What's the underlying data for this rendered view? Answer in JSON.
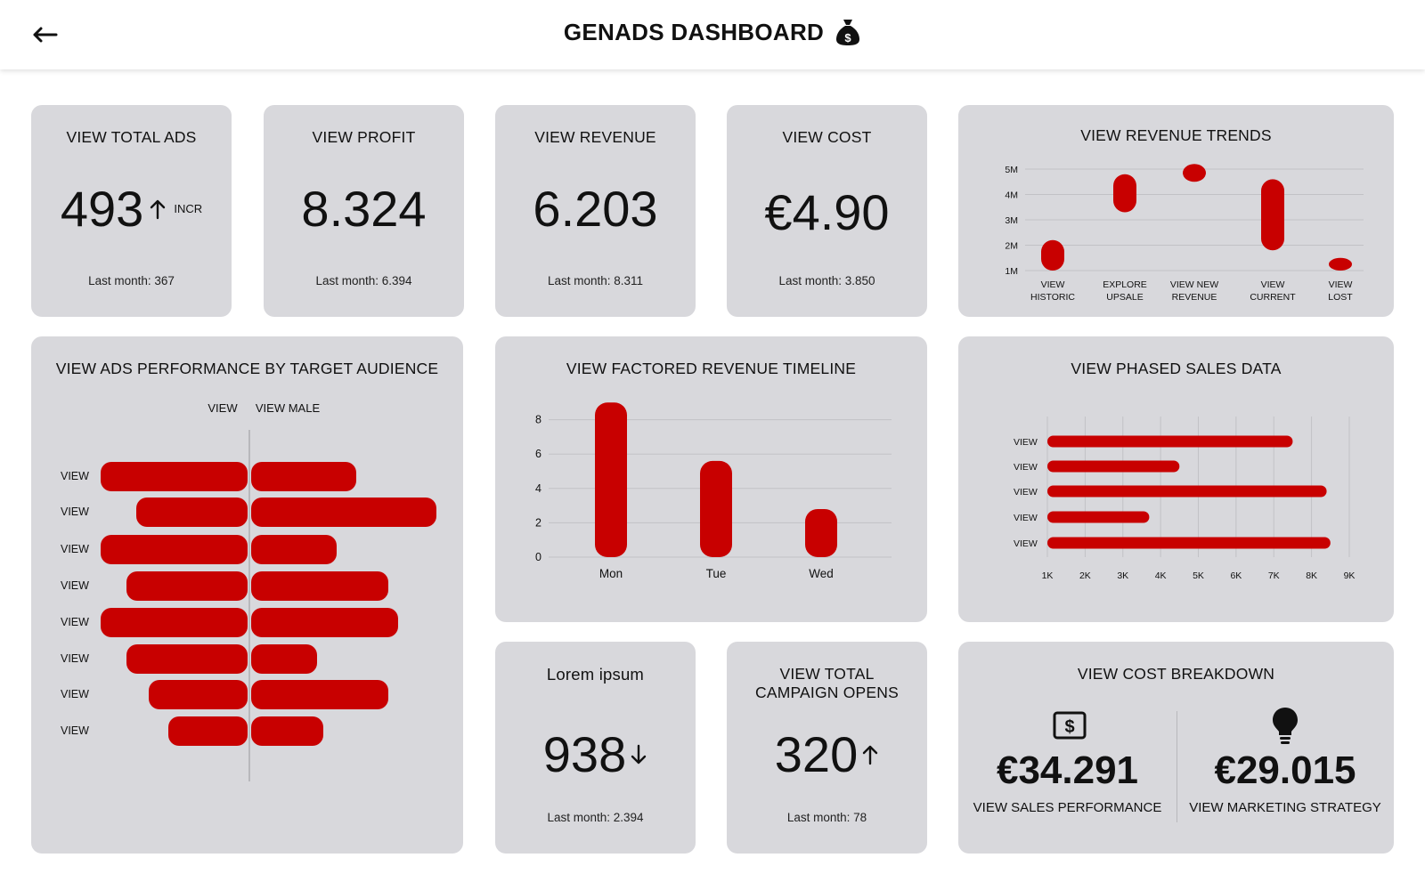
{
  "header": {
    "title": "GENADS DASHBOARD",
    "back_icon": "arrow-left-icon",
    "title_icon": "money-bag-icon"
  },
  "kpis": {
    "total_ads": {
      "title": "VIEW TOTAL ADS",
      "value": "493",
      "trend": "INCR",
      "trend_icon": "arrow-up-icon",
      "sub": "Last month: 367"
    },
    "profit": {
      "title": "VIEW PROFIT",
      "value": "8.324",
      "sub": "Last month: 6.394"
    },
    "revenue": {
      "title": "VIEW REVENUE",
      "value": "6.203",
      "sub": "Last month: 8.311"
    },
    "cost": {
      "title": "VIEW COST",
      "value": "€4.90",
      "sub": "Last month: 3.850"
    },
    "lorem": {
      "title": "Lorem ipsum",
      "value": "938",
      "trend_icon": "arrow-down-icon",
      "sub": "Last month: 2.394"
    },
    "campaign_opens": {
      "title_line1": "VIEW TOTAL",
      "title_line2": "CAMPAIGN OPENS",
      "value": "320",
      "trend_icon": "arrow-up-icon",
      "sub": "Last month: 78"
    }
  },
  "cost_breakdown": {
    "title": "VIEW COST BREAKDOWN",
    "left": {
      "value": "€34.291",
      "label": "VIEW SALES PERFORMANCE",
      "icon": "dollar-bill-icon"
    },
    "right": {
      "value": "€29.015",
      "label": "VIEW MARKETING STRATEGY",
      "icon": "lightbulb-icon"
    }
  },
  "colors": {
    "accent": "#c80000",
    "card": "#d8d8dc",
    "grid": "#c2c2c6"
  },
  "chart_data": [
    {
      "id": "revenue_trends",
      "type": "bar",
      "title": "VIEW REVENUE TRENDS",
      "categories": [
        "VIEW HISTORIC",
        "EXPLORE UPSALE",
        "VIEW NEW REVENUE",
        "VIEW CURRENT",
        "VIEW LOST"
      ],
      "category_lines": [
        [
          "VIEW",
          "HISTORIC"
        ],
        [
          "EXPLORE",
          "UPSALE"
        ],
        [
          "VIEW NEW",
          "REVENUE"
        ],
        [
          "VIEW",
          "CURRENT"
        ],
        [
          "VIEW",
          ""
        ]
      ],
      "last_label_line2": "LOST",
      "ranges": [
        [
          1,
          2.2
        ],
        [
          3.3,
          4.8
        ],
        [
          4.5,
          5.2
        ],
        [
          1.8,
          4.6
        ],
        [
          1.0,
          1.5
        ]
      ],
      "ticks": [
        "1M",
        "2M",
        "3M",
        "4M",
        "5M"
      ],
      "ylim": [
        1,
        5
      ],
      "grid": true
    },
    {
      "id": "audience",
      "type": "bar",
      "title": "VIEW ADS PERFORMANCE BY TARGET AUDIENCE",
      "legend_left": "VIEW",
      "legend_right": "VIEW MALE",
      "categories": [
        "VIEW",
        "VIEW",
        "VIEW",
        "VIEW",
        "VIEW",
        "VIEW",
        "VIEW",
        "VIEW"
      ],
      "left_values": [
        165,
        125,
        165,
        136,
        165,
        136,
        111,
        89
      ],
      "right_values": [
        118,
        208,
        96,
        154,
        165,
        74,
        154,
        81
      ]
    },
    {
      "id": "factored_timeline",
      "type": "bar",
      "title": "VIEW FACTORED REVENUE TIMELINE",
      "categories": [
        "Mon",
        "Tue",
        "Wed"
      ],
      "values": [
        9,
        5.6,
        2.8
      ],
      "ticks": [
        "0",
        "2",
        "4",
        "6",
        "8"
      ],
      "ylim": [
        0,
        9
      ],
      "grid": true
    },
    {
      "id": "phased_sales",
      "type": "bar",
      "title": "VIEW PHASED SALES DATA",
      "categories": [
        "VIEW",
        "VIEW",
        "VIEW",
        "VIEW",
        "VIEW"
      ],
      "values": [
        7.5,
        4.5,
        8.4,
        3.7,
        8.5
      ],
      "ticks": [
        "1K",
        "2K",
        "3K",
        "4K",
        "5K",
        "6K",
        "7K",
        "8K",
        "9K"
      ],
      "xlim": [
        1,
        9
      ],
      "grid": true
    }
  ]
}
